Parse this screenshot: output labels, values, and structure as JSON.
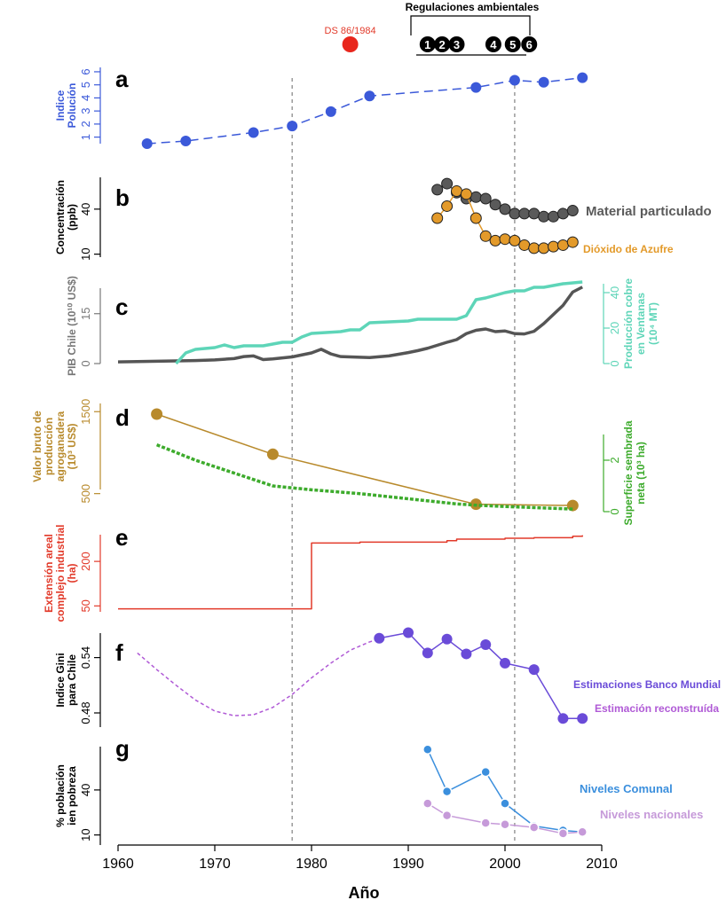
{
  "chart_data": {
    "type": "line",
    "xlabel": "Año",
    "x_ticks": [
      1960,
      1970,
      1980,
      1990,
      2000,
      2010
    ],
    "xlim": [
      1960,
      2010
    ],
    "reference_lines_x": [
      1978,
      2001
    ],
    "top_annotations": {
      "ds_label": "DS 86/1984",
      "ds_year": 1984,
      "regulations_title": "Regulaciones ambientales",
      "regulations": [
        {
          "num": "1",
          "year": 1992
        },
        {
          "num": "2",
          "year": 1993.5
        },
        {
          "num": "3",
          "year": 1995
        },
        {
          "num": "4",
          "year": 1998.8
        },
        {
          "num": "5",
          "year": 2000.8
        },
        {
          "num": "6",
          "year": 2002.5
        }
      ]
    },
    "panels": [
      {
        "letter": "a",
        "ylabel": [
          "Indice",
          "Polución"
        ],
        "yticks": [
          1,
          2,
          3,
          4,
          5,
          6
        ],
        "ylim": [
          0.5,
          6.2
        ],
        "color": "#3b59d9",
        "series": [
          {
            "style": "dashed-points",
            "x": [
              1963,
              1967,
              1974,
              1978,
              1982,
              1986,
              1997,
              2001,
              2004,
              2008
            ],
            "y": [
              0.5,
              0.7,
              1.35,
              1.85,
              2.95,
              4.15,
              4.8,
              5.35,
              5.2,
              5.55
            ]
          }
        ]
      },
      {
        "letter": "b",
        "ylabel": [
          "Concentración",
          "(ppb)"
        ],
        "yticks": [
          10,
          40
        ],
        "ylim": [
          8,
          60
        ],
        "color": "#000000",
        "series": [
          {
            "name": "Material particulado",
            "color": "#5a5a5a",
            "style": "line-points",
            "x": [
              1993,
              1994,
              1995,
              1996,
              1997,
              1998,
              1999,
              2000,
              2001,
              2002,
              2003,
              2004,
              2005,
              2006,
              2007
            ],
            "y": [
              53,
              57,
              51,
              47,
              48,
              47,
              43,
              40,
              37,
              37,
              37,
              35,
              35,
              37,
              39
            ]
          },
          {
            "name": "Dióxido de Azufre",
            "color": "#e39a2a",
            "style": "line-points",
            "x": [
              1993,
              1994,
              1995,
              1996,
              1997,
              1998,
              1999,
              2000,
              2001,
              2002,
              2003,
              2004,
              2005,
              2006,
              2007
            ],
            "y": [
              34,
              42,
              52,
              50,
              34,
              22,
              19,
              20,
              19,
              16,
              14,
              14,
              15,
              16,
              18
            ]
          }
        ]
      },
      {
        "letter": "c",
        "ylabel": [
          "PIB Chile (10¹⁰ US$)"
        ],
        "yticks": [
          0,
          15
        ],
        "ylim": [
          0,
          24
        ],
        "color": "#777777",
        "right_axis": {
          "label": [
            "Producción cobre",
            "en  Ventanas",
            "(10⁴ MT)"
          ],
          "yticks": [
            0,
            20,
            40
          ],
          "ylim": [
            0,
            45
          ],
          "color": "#5ed5b8"
        },
        "series": [
          {
            "name": "PIB Chile",
            "color": "#555555",
            "axis": "left",
            "style": "line",
            "x": [
              1960,
              1962,
              1964,
              1966,
              1968,
              1970,
              1972,
              1973,
              1974,
              1975,
              1976,
              1978,
              1980,
              1981,
              1982,
              1983,
              1984,
              1985,
              1986,
              1988,
              1990,
              1991,
              1992,
              1993,
              1994,
              1995,
              1996,
              1997,
              1998,
              1999,
              2000,
              2001,
              2002,
              2003,
              2004,
              2006,
              2007,
              2008
            ],
            "y": [
              0.5,
              0.6,
              0.7,
              0.8,
              0.9,
              1.1,
              1.5,
              2.1,
              2.3,
              1.2,
              1.4,
              2.0,
              3.2,
              4.3,
              2.9,
              2.1,
              2.0,
              1.9,
              1.8,
              2.3,
              3.3,
              3.9,
              4.6,
              5.5,
              6.4,
              7.2,
              9.0,
              10.0,
              10.4,
              9.6,
              9.8,
              9.0,
              8.9,
              9.7,
              12.0,
              17.5,
              21.5,
              23.0
            ]
          },
          {
            "name": "Producción cobre",
            "color": "#5ed5b8",
            "axis": "right",
            "style": "line",
            "x": [
              1966,
              1967,
              1968,
              1970,
              1971,
              1972,
              1973,
              1975,
              1976,
              1977,
              1978,
              1979,
              1980,
              1983,
              1984,
              1985,
              1986,
              1990,
              1991,
              1995,
              1996,
              1997,
              1998,
              2000,
              2001,
              2002,
              2003,
              2004,
              2006,
              2008
            ],
            "y": [
              0,
              6,
              8,
              9,
              10.5,
              9,
              10,
              10,
              11,
              12,
              12,
              15,
              17,
              18,
              19,
              19,
              23,
              24,
              25,
              25,
              27,
              36,
              37,
              40,
              41,
              41,
              43,
              43,
              45,
              46
            ]
          }
        ]
      },
      {
        "letter": "d",
        "ylabel": [
          "Valor bruto de",
          "producción",
          "agroganadera",
          "(10³ US$)"
        ],
        "yticks": [
          500,
          1500
        ],
        "ylim": [
          280,
          1600
        ],
        "color": "#b88a2c",
        "right_axis": {
          "label": [
            "Superficie sembrada",
            "neta (10³ ha)"
          ],
          "yticks": [
            0,
            2
          ],
          "ylim": [
            0,
            3
          ],
          "color": "#3dab2c"
        },
        "series": [
          {
            "name": "Valor bruto de producción agroganadera",
            "color": "#b88a2c",
            "axis": "left",
            "style": "line-points",
            "x": [
              1964,
              1976,
              1997,
              2007
            ],
            "y": [
              1470,
              980,
              370,
              355
            ]
          },
          {
            "name": "Superficie sembrada neta",
            "color": "#3dab2c",
            "axis": "right",
            "style": "dashed-thick",
            "x": [
              1964,
              1968,
              1972,
              1976,
              1980,
              1985,
              1990,
              1995,
              1997,
              2000,
              2007
            ],
            "y": [
              2.6,
              2.0,
              1.5,
              1.0,
              0.85,
              0.7,
              0.5,
              0.3,
              0.25,
              0.2,
              0.1
            ]
          }
        ]
      },
      {
        "letter": "e",
        "ylabel": [
          "Extensión areal",
          "complejo industrial",
          "(ha)"
        ],
        "yticks": [
          50,
          200
        ],
        "ylim": [
          30,
          305
        ],
        "color": "#e23a2a",
        "series": [
          {
            "name": "Extensión areal complejo industrial",
            "color": "#e23a2a",
            "style": "step",
            "x": [
              1960,
              1980,
              1980,
              1985,
              1994,
              1995,
              2000,
              2003,
              2007,
              2008
            ],
            "y": [
              40,
              40,
              262,
              265,
              270,
              275,
              278,
              280,
              285,
              288
            ]
          }
        ]
      },
      {
        "letter": "f",
        "ylabel": [
          "Indice Gini",
          "para Chile"
        ],
        "yticks": [
          0.48,
          0.54
        ],
        "ylim": [
          0.455,
          0.58
        ],
        "color": "#000000",
        "series": [
          {
            "name": "Estimación reconstruída",
            "color": "#b05ad6",
            "style": "dashed",
            "x": [
              1962,
              1964,
              1966,
              1968,
              1970,
              1972,
              1974,
              1976,
              1978,
              1980,
              1982,
              1984,
              1986,
              1987
            ],
            "y": [
              0.545,
              0.527,
              0.51,
              0.494,
              0.482,
              0.477,
              0.478,
              0.486,
              0.5,
              0.518,
              0.534,
              0.548,
              0.557,
              0.56
            ]
          },
          {
            "name": "Estimaciones Banco Mundial",
            "color": "#6a4bd8",
            "style": "line-points",
            "x": [
              1987,
              1990,
              1992,
              1994,
              1996,
              1998,
              2000,
              2003,
              2006,
              2008
            ],
            "y": [
              0.561,
              0.567,
              0.545,
              0.56,
              0.544,
              0.554,
              0.534,
              0.527,
              0.474,
              0.474
            ]
          }
        ]
      },
      {
        "letter": "g",
        "ylabel": [
          "% población",
          "ien pobreza"
        ],
        "yticks": [
          10,
          40
        ],
        "ylim": [
          8,
          76
        ],
        "color": "#000000",
        "series": [
          {
            "name": "Niveles Comunal",
            "color": "#3b8fdd",
            "style": "line-points-small",
            "x": [
              1992,
              1994,
              1998,
              2000,
              2003,
              2006,
              2008
            ],
            "y": [
              67,
              39,
              52,
              31,
              16,
              13,
              12
            ]
          },
          {
            "name": "Niveles nacionales",
            "color": "#c69ad9",
            "style": "line-points-small",
            "x": [
              1992,
              1994,
              1998,
              2000,
              2003,
              2006,
              2008
            ],
            "y": [
              31,
              23,
              18,
              17,
              15,
              11,
              12
            ]
          }
        ]
      }
    ]
  }
}
